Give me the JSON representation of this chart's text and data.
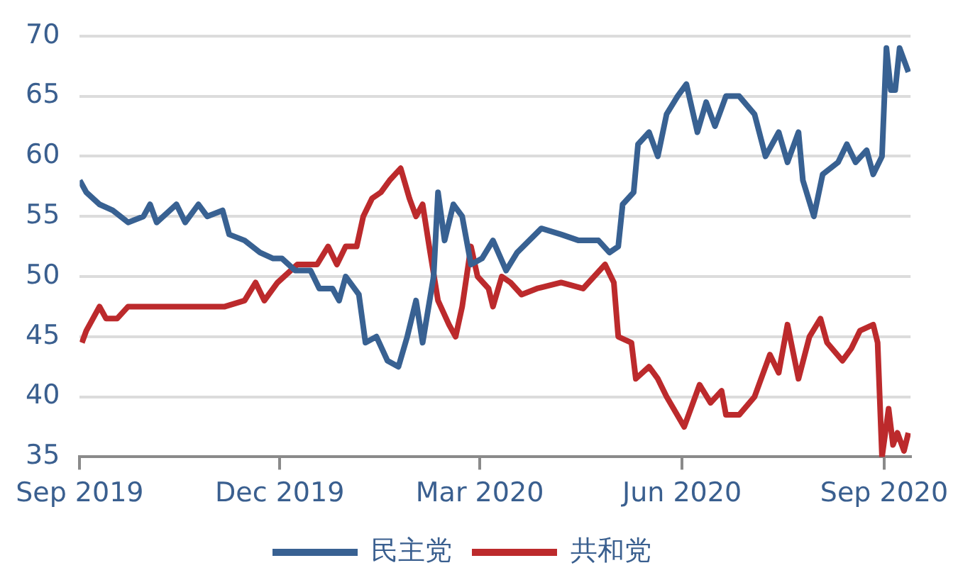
{
  "chart_data": {
    "type": "line",
    "xlim": [
      "2019-09-01",
      "2020-09-13"
    ],
    "xticks": [
      {
        "value": "2019-09-01",
        "label": "Sep 2019"
      },
      {
        "value": "2019-12-01",
        "label": "Dec 2019"
      },
      {
        "value": "2020-03-01",
        "label": "Mar 2020"
      },
      {
        "value": "2020-06-01",
        "label": "Jun 2020"
      },
      {
        "value": "2020-09-01",
        "label": "Sep 2020"
      }
    ],
    "ylim": [
      35,
      70
    ],
    "yticks": [
      35,
      40,
      45,
      50,
      55,
      60,
      65,
      70
    ],
    "grid": "y",
    "legend": "bottom",
    "marker": "none",
    "series": [
      {
        "name": "民主党",
        "color": "#386192",
        "x": [
          "2019-09-01",
          "2019-09-04",
          "2019-09-10",
          "2019-09-16",
          "2019-09-23",
          "2019-09-30",
          "2019-10-03",
          "2019-10-06",
          "2019-10-15",
          "2019-10-19",
          "2019-10-25",
          "2019-10-29",
          "2019-11-05",
          "2019-11-08",
          "2019-11-15",
          "2019-11-22",
          "2019-11-28",
          "2019-12-02",
          "2019-12-08",
          "2019-12-15",
          "2019-12-19",
          "2019-12-25",
          "2019-12-28",
          "2019-12-31",
          "2020-01-06",
          "2020-01-09",
          "2020-01-14",
          "2020-01-19",
          "2020-01-24",
          "2020-01-28",
          "2020-02-01",
          "2020-02-04",
          "2020-02-09",
          "2020-02-11",
          "2020-02-14",
          "2020-02-18",
          "2020-02-22",
          "2020-02-26",
          "2020-03-02",
          "2020-03-07",
          "2020-03-13",
          "2020-03-18",
          "2020-03-29",
          "2020-04-07",
          "2020-04-15",
          "2020-04-24",
          "2020-04-29",
          "2020-05-03",
          "2020-05-05",
          "2020-05-10",
          "2020-05-12",
          "2020-05-17",
          "2020-05-21",
          "2020-05-25",
          "2020-05-30",
          "2020-06-03",
          "2020-06-08",
          "2020-06-12",
          "2020-06-16",
          "2020-06-21",
          "2020-06-27",
          "2020-07-04",
          "2020-07-09",
          "2020-07-15",
          "2020-07-19",
          "2020-07-24",
          "2020-07-26",
          "2020-07-31",
          "2020-08-04",
          "2020-08-11",
          "2020-08-15",
          "2020-08-19",
          "2020-08-24",
          "2020-08-27",
          "2020-08-31",
          "2020-09-02",
          "2020-09-04",
          "2020-09-06",
          "2020-09-08",
          "2020-09-12"
        ],
        "values": [
          58,
          57,
          56,
          55.5,
          54.5,
          55,
          56,
          54.5,
          56,
          54.5,
          56,
          55,
          55.5,
          53.5,
          53,
          52,
          51.5,
          51.5,
          50.5,
          50.5,
          49,
          49,
          48,
          50,
          48.5,
          44.5,
          45,
          43,
          42.5,
          45,
          48,
          44.5,
          50,
          57,
          53,
          56,
          55,
          51,
          51.5,
          53,
          50.5,
          52,
          54,
          53.5,
          53,
          53,
          52,
          52.5,
          56,
          57,
          61,
          62,
          60,
          63.5,
          65,
          66,
          62,
          64.5,
          62.5,
          65,
          65,
          63.5,
          60,
          62,
          59.5,
          62,
          58,
          55,
          58.5,
          59.5,
          61,
          59.5,
          60.5,
          58.5,
          60,
          69,
          65.5,
          65.5,
          69,
          67
        ]
      },
      {
        "name": "共和党",
        "color": "#bc2a2c",
        "x": [
          "2019-09-02",
          "2019-09-04",
          "2019-09-10",
          "2019-09-13",
          "2019-09-18",
          "2019-09-23",
          "2019-10-15",
          "2019-11-06",
          "2019-11-15",
          "2019-11-20",
          "2019-11-24",
          "2019-11-30",
          "2019-12-09",
          "2019-12-18",
          "2019-12-23",
          "2019-12-27",
          "2019-12-31",
          "2020-01-05",
          "2020-01-08",
          "2020-01-12",
          "2020-01-16",
          "2020-01-20",
          "2020-01-25",
          "2020-01-29",
          "2020-02-01",
          "2020-02-04",
          "2020-02-07",
          "2020-02-11",
          "2020-02-16",
          "2020-02-19",
          "2020-02-22",
          "2020-02-26",
          "2020-02-29",
          "2020-03-05",
          "2020-03-07",
          "2020-03-11",
          "2020-03-15",
          "2020-03-20",
          "2020-03-27",
          "2020-04-07",
          "2020-04-17",
          "2020-04-27",
          "2020-05-01",
          "2020-05-03",
          "2020-05-09",
          "2020-05-11",
          "2020-05-17",
          "2020-05-21",
          "2020-05-25",
          "2020-06-02",
          "2020-06-06",
          "2020-06-09",
          "2020-06-14",
          "2020-06-19",
          "2020-06-21",
          "2020-06-27",
          "2020-07-04",
          "2020-07-11",
          "2020-07-15",
          "2020-07-19",
          "2020-07-24",
          "2020-07-29",
          "2020-08-03",
          "2020-08-06",
          "2020-08-13",
          "2020-08-17",
          "2020-08-21",
          "2020-08-27",
          "2020-08-29",
          "2020-08-31",
          "2020-09-03",
          "2020-09-05",
          "2020-09-07",
          "2020-09-10",
          "2020-09-12"
        ],
        "values": [
          44.5,
          45.5,
          47.5,
          46.5,
          46.5,
          47.5,
          47.5,
          47.5,
          48,
          49.5,
          48,
          49.5,
          51,
          51,
          52.5,
          51,
          52.5,
          52.5,
          55,
          56.5,
          57,
          58,
          59,
          56.5,
          55,
          56,
          52.5,
          48,
          46,
          45,
          47.5,
          52.5,
          50,
          49,
          47.5,
          50,
          49.5,
          48.5,
          49,
          49.5,
          49,
          51,
          49.5,
          45,
          44.5,
          41.5,
          42.5,
          41.5,
          40,
          37.5,
          39.5,
          41,
          39.5,
          40.5,
          38.5,
          38.5,
          40,
          43.5,
          42,
          46,
          41.5,
          45,
          46.5,
          44.5,
          43,
          44,
          45.5,
          46,
          44.5,
          35,
          39,
          36,
          37,
          35.5,
          37
        ]
      }
    ]
  }
}
